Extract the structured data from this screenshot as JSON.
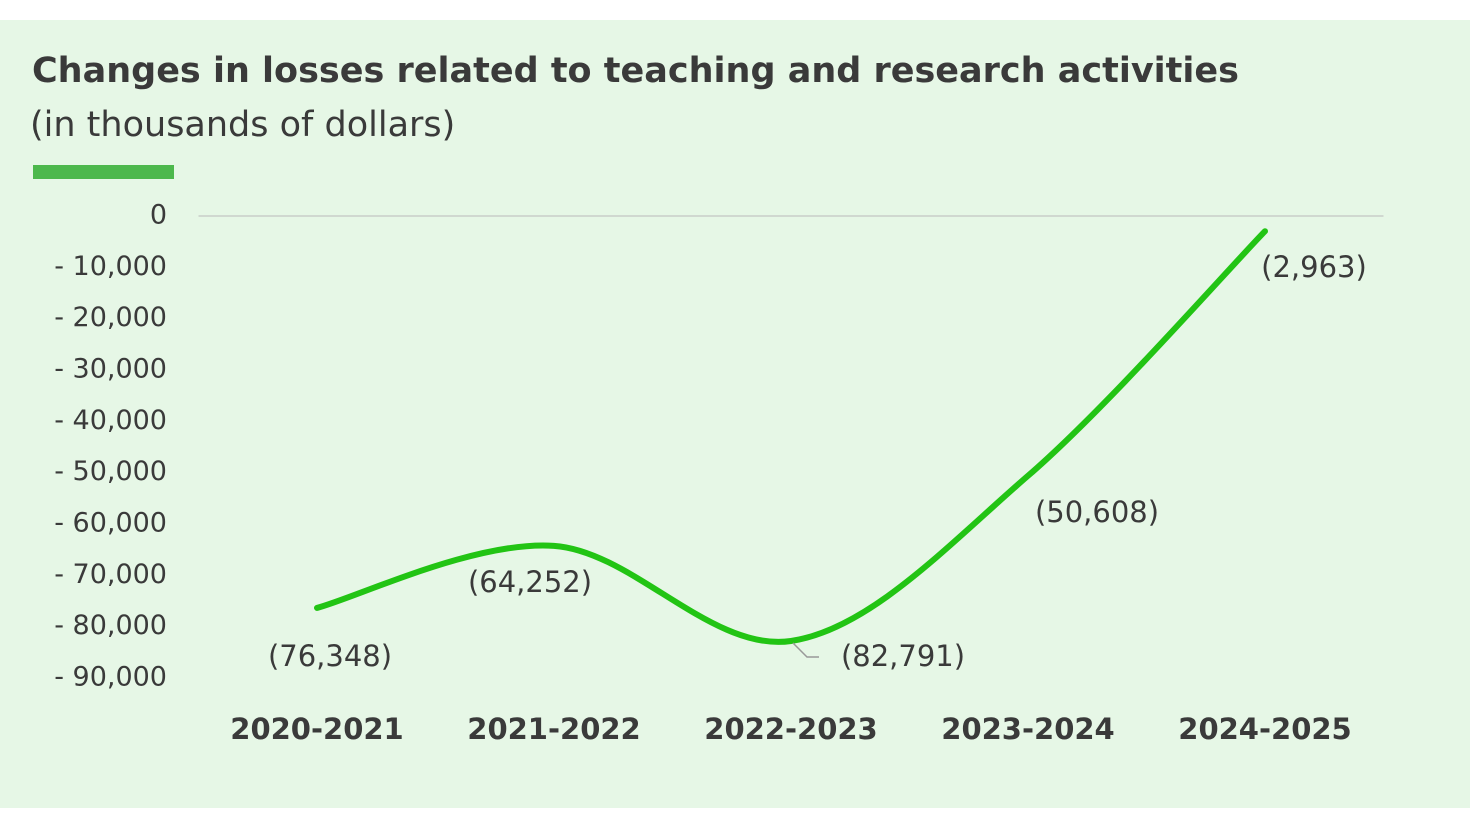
{
  "chart_data": {
    "type": "line",
    "title": "Changes in losses related to teaching and research activities",
    "subtitle": "(in thousands of dollars)",
    "categories": [
      "2020-2021",
      "2021-2022",
      "2022-2023",
      "2023-2024",
      "2024-2025"
    ],
    "values": [
      -76348,
      -64252,
      -82791,
      -50608,
      -2963
    ],
    "value_labels": [
      "(76,348)",
      "(64,252)",
      "(82,791)",
      "(50,608)",
      "(2,963)"
    ],
    "color": "#22c414",
    "ylim": [
      -90000,
      0
    ],
    "yticks": [
      0,
      {
        "value": -10000,
        "label": "- 10,000"
      },
      {
        "value": -20000,
        "label": "- 20,000"
      },
      {
        "value": -30000,
        "label": "- 30,000"
      },
      {
        "value": -40000,
        "label": "- 40,000"
      },
      {
        "value": -50000,
        "label": "- 50,000"
      },
      {
        "value": -60000,
        "label": "- 60,000"
      },
      {
        "value": -70000,
        "label": "- 70,000"
      },
      {
        "value": -80000,
        "label": "- 80,000"
      },
      {
        "value": -90000,
        "label": "- 90,000"
      }
    ],
    "grid": false
  }
}
